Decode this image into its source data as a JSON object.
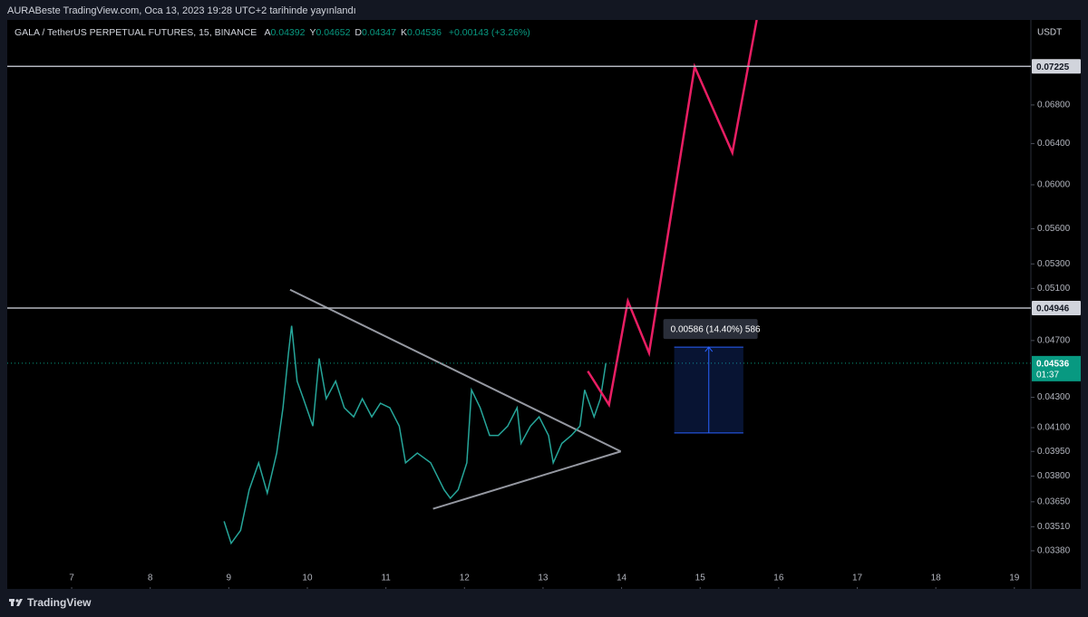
{
  "header": {
    "published": "AURABeste TradingView.com, Oca 13, 2023 19:28 UTC+2 tarihinde yayınlandı"
  },
  "chart_data": {
    "type": "line",
    "symbol": "GALA / TetherUS PERPETUAL FUTURES, 15, BINANCE",
    "ohlc": [
      {
        "label": "A",
        "value": 0.04392
      },
      {
        "label": "Y",
        "value": 0.04652
      },
      {
        "label": "D",
        "value": 0.04347
      },
      {
        "label": "K",
        "value": 0.04536
      }
    ],
    "change": "+0.00143 (+3.26%)",
    "currency": "USDT",
    "log_scale": true,
    "grid": false,
    "xlim": [
      6.18,
      19.21
    ],
    "xticks": [
      7,
      8,
      9,
      10,
      11,
      12,
      13,
      14,
      15,
      16,
      17,
      18,
      19
    ],
    "ylim": [
      0.03285,
      0.0777
    ],
    "yticks": [
      {
        "value": 0.0338,
        "label": "0.03380"
      },
      {
        "value": 0.0351,
        "label": "0.03510"
      },
      {
        "value": 0.0365,
        "label": "0.03650"
      },
      {
        "value": 0.038,
        "label": "0.03800"
      },
      {
        "value": 0.0395,
        "label": "0.03950"
      },
      {
        "value": 0.041,
        "label": "0.04100"
      },
      {
        "value": 0.043,
        "label": "0.04300"
      },
      {
        "value": 0.047,
        "label": "0.04700"
      },
      {
        "value": 0.051,
        "label": "0.05100"
      },
      {
        "value": 0.053,
        "label": "0.05300"
      },
      {
        "value": 0.056,
        "label": "0.05600"
      },
      {
        "value": 0.06,
        "label": "0.06000"
      },
      {
        "value": 0.064,
        "label": "0.06400"
      },
      {
        "value": 0.068,
        "label": "0.06800"
      }
    ],
    "price": {
      "color": "#26a69a",
      "x": [
        8.94,
        9.03,
        9.15,
        9.26,
        9.38,
        9.49,
        9.61,
        9.69,
        9.76,
        9.8,
        9.87,
        9.95,
        10.07,
        10.15,
        10.24,
        10.36,
        10.47,
        10.59,
        10.7,
        10.82,
        10.93,
        11.05,
        11.17,
        11.25,
        11.4,
        11.57,
        11.74,
        11.82,
        11.92,
        12.03,
        12.09,
        12.2,
        12.32,
        12.43,
        12.55,
        12.67,
        12.72,
        12.84,
        12.95,
        13.07,
        13.13,
        13.24,
        13.36,
        13.47,
        13.53,
        13.65,
        13.73,
        13.8
      ],
      "values": [
        0.0354,
        0.0342,
        0.0349,
        0.0372,
        0.0388,
        0.037,
        0.0394,
        0.0423,
        0.0461,
        0.0481,
        0.0441,
        0.0429,
        0.0411,
        0.0457,
        0.0429,
        0.0441,
        0.0423,
        0.0417,
        0.0429,
        0.0417,
        0.0426,
        0.0423,
        0.0411,
        0.0388,
        0.0394,
        0.0388,
        0.0372,
        0.0367,
        0.0372,
        0.0388,
        0.0435,
        0.0423,
        0.0405,
        0.0405,
        0.0411,
        0.0423,
        0.04,
        0.0411,
        0.0417,
        0.0405,
        0.0388,
        0.04,
        0.0405,
        0.0411,
        0.0435,
        0.0417,
        0.0429,
        0.04536
      ]
    },
    "last_price": {
      "value": 0.04536,
      "countdown": "01:37",
      "color": "#089981"
    },
    "levels": [
      0.07225,
      0.04946
    ],
    "level_color": "#b2b5be",
    "projection": {
      "color": "#e91e63",
      "x": [
        13.57,
        13.84,
        14.08,
        14.35,
        14.93,
        15.41,
        15.72
      ],
      "values": [
        0.0448,
        0.0425,
        0.05,
        0.0461,
        0.0722,
        0.0631,
        0.0777
      ]
    },
    "triangle_color": "#9598a1",
    "triangle": [
      {
        "x": [
          9.78,
          13.99
        ],
        "values": [
          0.0509,
          0.0395
        ]
      },
      {
        "x": [
          11.6,
          13.99
        ],
        "values": [
          0.0361,
          0.0395
        ]
      }
    ],
    "measure": {
      "x": [
        14.67,
        15.55
      ],
      "values": [
        0.04652,
        0.04066
      ],
      "label": "0.00586 (14.40%) 586",
      "color": "#2962ff"
    }
  },
  "footer": {
    "brand": "TradingView"
  }
}
